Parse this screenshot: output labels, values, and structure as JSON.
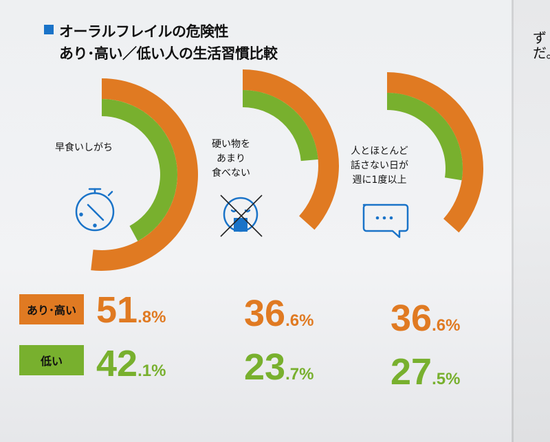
{
  "title": {
    "line1": "オーラルフレイルの危険性",
    "line2": "あり･高い／低い人の生活習慣比較"
  },
  "side_text": "ずだ。",
  "colors": {
    "high": "#e07a22",
    "low": "#78b02e",
    "accent": "#1a73c8"
  },
  "legend": {
    "high": "あり･高い",
    "low": "低い"
  },
  "chart_data": {
    "type": "radial-bar",
    "categories": [
      "早食いしがち",
      "硬い物をあまり食べない",
      "人とほとんど話さない日が週に1度以上"
    ],
    "series": [
      {
        "name": "あり･高い",
        "values": [
          51.8,
          36.6,
          36.6
        ]
      },
      {
        "name": "低い",
        "values": [
          42.1,
          23.7,
          27.5
        ]
      }
    ],
    "unit": "%"
  },
  "items": [
    {
      "label_lines": [
        "早食いしがち"
      ],
      "icon": "stopwatch-icon",
      "high": {
        "int": "51",
        "dec": ".8%"
      },
      "low": {
        "int": "42",
        "dec": ".1%"
      }
    },
    {
      "label_lines": [
        "硬い物を",
        "あまり",
        "食べない"
      ],
      "icon": "no-eating-icon",
      "high": {
        "int": "36",
        "dec": ".6%"
      },
      "low": {
        "int": "23",
        "dec": ".7%"
      }
    },
    {
      "label_lines": [
        "人とほとんど",
        "話さない日が",
        "週に1度以上"
      ],
      "icon": "speech-bubble-icon",
      "high": {
        "int": "36",
        "dec": ".6%"
      },
      "low": {
        "int": "27",
        "dec": ".5%"
      }
    }
  ]
}
